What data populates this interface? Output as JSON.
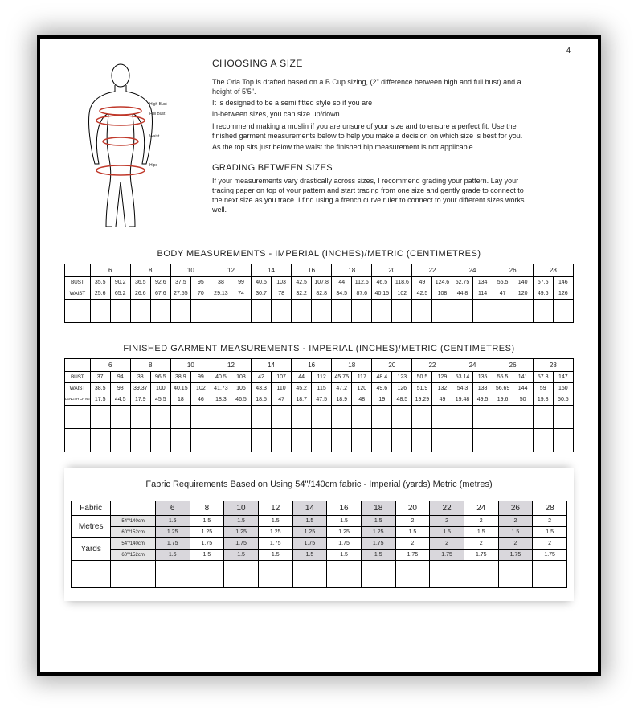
{
  "page_number": "4",
  "colors": {
    "figure_stroke": "#000000",
    "figure_accent": "#c0392b",
    "text": "#222222",
    "table_shade": "#d9d7dc",
    "subcol_shade": "#e6e6e6",
    "background": "#ffffff"
  },
  "typography": {
    "heading_size_pt": 12,
    "subheading_size_pt": 11,
    "body_size_pt": 9,
    "table_cell_size_pt": 7
  },
  "figure": {
    "labels": {
      "high_bust": "High Bust",
      "full_bust": "Full Bust",
      "waist": "Waist",
      "hips": "Hips"
    }
  },
  "intro": {
    "heading": "CHOOSING A SIZE",
    "p1": "The Orla Top is drafted based on a B Cup sizing, (2\" difference between high and full bust) and a height of 5'5\".",
    "p2": "It is designed to be a semi fitted style so if you are",
    "p3": "in-between sizes, you can size up/down.",
    "p4": "I recommend making a muslin if you are unsure of your size and to ensure a perfect fit. Use the finished garment measurements below to help you make a decision on which size is best for you.",
    "p5": "As the top sits just below the waist the finished hip measurement is not applicable."
  },
  "grading": {
    "heading": "GRADING BETWEEN SIZES",
    "p1": "If your measurements vary drastically across sizes, I recommend grading your pattern.  Lay your tracing paper on top of your pattern and start tracing from one size and gently grade to connect to the next size as you trace.  I find using a french curve ruler to connect to your different sizes works well."
  },
  "sizes": [
    "6",
    "8",
    "10",
    "12",
    "14",
    "16",
    "18",
    "20",
    "22",
    "24",
    "26",
    "28"
  ],
  "body_table": {
    "caption": "BODY MEASUREMENTS - IMPERIAL (INCHES)/METRIC (CENTIMETRES)",
    "row_labels": [
      "BUST",
      "WAIST"
    ],
    "rows": {
      "bust": [
        "35.5",
        "90.2",
        "36.5",
        "92.6",
        "37.5",
        "95",
        "38",
        "99",
        "40.5",
        "103",
        "42.5",
        "107.8",
        "44",
        "112.6",
        "46.5",
        "118.6",
        "49",
        "124.6",
        "52.75",
        "134",
        "55.5",
        "140",
        "57.5",
        "146"
      ],
      "waist": [
        "25.6",
        "65.2",
        "26.6",
        "67.6",
        "27.55",
        "70",
        "29.13",
        "74",
        "30.7",
        "78",
        "32.2",
        "82.8",
        "34.5",
        "87.6",
        "40.15",
        "102",
        "42.5",
        "108",
        "44.8",
        "114",
        "47",
        "120",
        "49.6",
        "126"
      ]
    }
  },
  "finished_table": {
    "caption": "FINISHED GARMENT MEASUREMENTS - IMPERIAL (INCHES)/METRIC (CENTIMETRES)",
    "row_labels": [
      "BUST",
      "WAIST",
      "LENGTH CF NECKLINE TO HEM"
    ],
    "rows": {
      "bust": [
        "37",
        "94",
        "38",
        "96.5",
        "38.9",
        "99",
        "40.5",
        "103",
        "42",
        "107",
        "44",
        "112",
        "45.75",
        "117",
        "48.4",
        "123",
        "50.5",
        "129",
        "53.14",
        "135",
        "55.5",
        "141",
        "57.8",
        "147"
      ],
      "waist": [
        "38.5",
        "98",
        "39.37",
        "100",
        "40.15",
        "102",
        "41.73",
        "106",
        "43.3",
        "110",
        "45.2",
        "115",
        "47.2",
        "120",
        "49.6",
        "126",
        "51.9",
        "132",
        "54.3",
        "138",
        "56.69",
        "144",
        "59",
        "150"
      ],
      "length": [
        "17.5",
        "44.5",
        "17.9",
        "45.5",
        "18",
        "46",
        "18.3",
        "46.5",
        "18.5",
        "47",
        "18.7",
        "47.5",
        "18.9",
        "48",
        "19",
        "48.5",
        "19.29",
        "49",
        "19.48",
        "49.5",
        "19.6",
        "50",
        "19.8",
        "50.5"
      ]
    }
  },
  "fabric": {
    "title_pre": "Fabric Requirements ",
    "title_bold": "Based on Using 54\"/140cm fabric",
    "title_post": " - Imperial (yards) Metric (metres)",
    "header_labels": {
      "fabric": "Fabric",
      "metres": "Metres",
      "yards": "Yards"
    },
    "sub_labels": {
      "a": "54\"/140cm",
      "b": "60\"/152cm"
    },
    "rows": {
      "metres_a": [
        "1.5",
        "1.5",
        "1.5",
        "1.5",
        "1.5",
        "1.5",
        "1.5",
        "2",
        "2",
        "2",
        "2",
        "2"
      ],
      "metres_b": [
        "1.25",
        "1.25",
        "1.25",
        "1.25",
        "1.25",
        "1.25",
        "1.25",
        "1.5",
        "1.5",
        "1.5",
        "1.5",
        "1.5"
      ],
      "yards_a": [
        "1.75",
        "1.75",
        "1.75",
        "1.75",
        "1.75",
        "1.75",
        "1.75",
        "2",
        "2",
        "2",
        "2",
        "2"
      ],
      "yards_b": [
        "1.5",
        "1.5",
        "1.5",
        "1.5",
        "1.5",
        "1.5",
        "1.5",
        "1.75",
        "1.75",
        "1.75",
        "1.75",
        "1.75"
      ]
    }
  }
}
